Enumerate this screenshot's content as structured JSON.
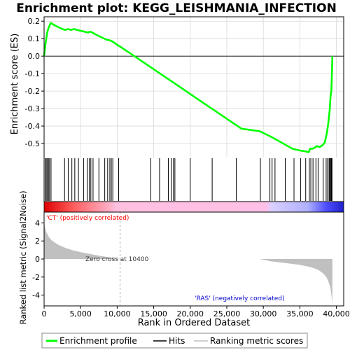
{
  "chart_data": [
    {
      "panel": "enrichment",
      "type": "line",
      "title": "Enrichment plot: KEGG_LEISHMANIA_INFECTION",
      "ylabel": "Enrichment score (ES)",
      "xlim": [
        0,
        41000
      ],
      "ylim": [
        -0.58,
        0.225
      ],
      "yticks": [
        -0.5,
        -0.4,
        -0.3,
        -0.2,
        -0.1,
        0.0,
        0.1,
        0.2
      ],
      "ytick_labels": [
        "-0.5",
        "-0.4",
        "-0.3",
        "-0.2",
        "-0.1",
        "0.0",
        "0.1",
        "0.2"
      ],
      "grid": true,
      "series": [
        {
          "name": "Enrichment profile",
          "color": "#00ff00",
          "x": [
            0,
            150,
            300,
            450,
            600,
            750,
            900,
            1500,
            2000,
            2500,
            2900,
            3300,
            3700,
            4100,
            4500,
            5000,
            5500,
            6000,
            6300,
            6600,
            7000,
            7500,
            8000,
            8500,
            9000,
            9300,
            12000,
            15000,
            18000,
            21000,
            24000,
            27000,
            29500,
            31000,
            32500,
            34000,
            35000,
            35800,
            36200,
            36400,
            36700,
            37000,
            37300,
            37700,
            38100,
            38400,
            38700,
            38900,
            39100,
            39200,
            39300,
            39350,
            39400,
            39450
          ],
          "y": [
            0.0,
            0.06,
            0.1,
            0.14,
            0.16,
            0.175,
            0.19,
            0.175,
            0.165,
            0.155,
            0.15,
            0.155,
            0.15,
            0.155,
            0.15,
            0.145,
            0.14,
            0.135,
            0.14,
            0.135,
            0.125,
            0.115,
            0.105,
            0.095,
            0.09,
            0.085,
            0.01,
            -0.075,
            -0.16,
            -0.245,
            -0.33,
            -0.415,
            -0.43,
            -0.46,
            -0.495,
            -0.53,
            -0.54,
            -0.545,
            -0.55,
            -0.53,
            -0.53,
            -0.525,
            -0.515,
            -0.52,
            -0.51,
            -0.495,
            -0.44,
            -0.38,
            -0.3,
            -0.23,
            -0.2,
            -0.15,
            -0.08,
            0.0
          ]
        }
      ]
    },
    {
      "panel": "hits",
      "type": "scatter",
      "series": [
        {
          "name": "Hits",
          "x": [
            150,
            300,
            450,
            600,
            750,
            950,
            2800,
            3300,
            3800,
            4200,
            4700,
            5400,
            5900,
            6200,
            6400,
            6700,
            7500,
            8300,
            8700,
            9000,
            9200,
            9400,
            10200,
            14600,
            15800,
            17000,
            17400,
            17700,
            17900,
            20000,
            23000,
            26300,
            29600,
            30900,
            31200,
            31600,
            33000,
            34200,
            35100,
            35800,
            36300,
            36500,
            36800,
            37200,
            37500,
            38200,
            38600,
            38800,
            39000,
            39100,
            39200,
            39300,
            39350,
            39400
          ]
        }
      ]
    },
    {
      "panel": "ranked-metric",
      "type": "area",
      "xlabel": "Rank in Ordered Dataset",
      "ylabel": "Ranked list metric (Signal2Noise)",
      "xlim": [
        0,
        41000
      ],
      "ylim": [
        -5.2,
        5.2
      ],
      "xticks": [
        0,
        5000,
        10000,
        15000,
        20000,
        25000,
        30000,
        35000,
        40000
      ],
      "xtick_labels": [
        "0",
        "5,000",
        "10,000",
        "15,000",
        "20,000",
        "25,000",
        "30,000",
        "35,000",
        "40,000"
      ],
      "yticks": [
        -4,
        -2,
        0,
        2,
        4
      ],
      "ytick_labels": [
        "-4",
        "-2",
        "0",
        "2",
        "4"
      ],
      "zero_cross": 10400,
      "series": [
        {
          "name": "Ranking metric scores",
          "color": "#c0c0c0",
          "x": [
            0,
            100,
            300,
            600,
            1000,
            1500,
            2000,
            3000,
            4000,
            5000,
            6000,
            7000,
            8000,
            9000,
            10000,
            10400,
            29500,
            31000,
            33000,
            35000,
            36500,
            37500,
            38200,
            38700,
            39000,
            39200,
            39350,
            39450
          ],
          "y": [
            4.2,
            3.6,
            3.0,
            2.5,
            2.1,
            1.8,
            1.55,
            1.2,
            0.95,
            0.75,
            0.6,
            0.45,
            0.3,
            0.18,
            0.05,
            0.0,
            0.0,
            -0.25,
            -0.45,
            -0.65,
            -0.9,
            -1.2,
            -1.6,
            -2.1,
            -2.7,
            -3.3,
            -4.2,
            -5.0
          ]
        }
      ]
    }
  ],
  "annotations": {
    "pos_label": "'CT' (positively correlated)",
    "neg_label": "'RAS' (negatively correlated)",
    "zero_cross_label": "Zero cross at 10400",
    "pos_color": "#ff0000",
    "neg_color": "#0000cc"
  },
  "legend": {
    "items": [
      {
        "label": "Enrichment profile",
        "color": "#00ff00"
      },
      {
        "label": "Hits",
        "color": "#000000"
      },
      {
        "label": "Ranking metric scores",
        "color": "#c0c0c0"
      }
    ]
  }
}
